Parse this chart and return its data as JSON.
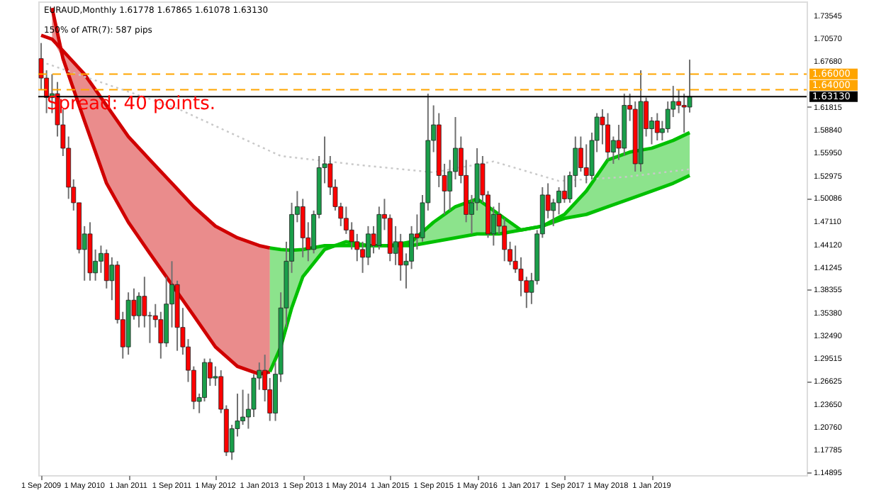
{
  "chart_data": {
    "type": "candlestick",
    "title": "EURAUD,Monthly  1.61778 1.67865 1.61078 1.63130",
    "subtitle": "150% of ATR(7):   587 pips",
    "annotations": [
      "Spread: 40 points."
    ],
    "x": [
      "2009-09",
      "2009-10",
      "2009-11",
      "2009-12",
      "2010-01",
      "2010-02",
      "2010-03",
      "2010-04",
      "2010-05",
      "2010-06",
      "2010-07",
      "2010-08",
      "2010-09",
      "2010-10",
      "2010-11",
      "2010-12",
      "2011-01",
      "2011-02",
      "2011-03",
      "2011-04",
      "2011-05",
      "2011-06",
      "2011-07",
      "2011-08",
      "2011-09",
      "2011-10",
      "2011-11",
      "2011-12",
      "2012-01",
      "2012-02",
      "2012-03",
      "2012-04",
      "2012-05",
      "2012-06",
      "2012-07",
      "2012-08",
      "2012-09",
      "2012-10",
      "2012-11",
      "2012-12",
      "2013-01",
      "2013-02",
      "2013-03",
      "2013-04",
      "2013-05",
      "2013-06",
      "2013-07",
      "2013-08",
      "2013-09",
      "2013-10",
      "2013-11",
      "2013-12",
      "2014-01",
      "2014-02",
      "2014-03",
      "2014-04",
      "2014-05",
      "2014-06",
      "2014-07",
      "2014-08",
      "2014-09",
      "2014-10",
      "2014-11",
      "2014-12",
      "2015-01",
      "2015-02",
      "2015-03",
      "2015-04",
      "2015-05",
      "2015-06",
      "2015-07",
      "2015-08",
      "2015-09",
      "2015-10",
      "2015-11",
      "2015-12",
      "2016-01",
      "2016-02",
      "2016-03",
      "2016-04",
      "2016-05",
      "2016-06",
      "2016-07",
      "2016-08",
      "2016-09",
      "2016-10",
      "2016-11",
      "2016-12",
      "2017-01",
      "2017-02",
      "2017-03",
      "2017-04",
      "2017-05",
      "2017-06",
      "2017-07",
      "2017-08",
      "2017-09",
      "2017-10",
      "2017-11",
      "2017-12",
      "2018-01",
      "2018-02",
      "2018-03",
      "2018-04",
      "2018-05",
      "2018-06",
      "2018-07",
      "2018-08",
      "2018-09",
      "2018-10",
      "2018-11",
      "2018-12",
      "2019-01",
      "2019-02",
      "2019-03",
      "2019-04",
      "2019-05",
      "2019-06",
      "2019-07",
      "2019-08"
    ],
    "ohlc": [
      [
        1.68,
        1.7,
        1.64,
        1.655
      ],
      [
        1.655,
        1.665,
        1.61,
        1.63
      ],
      [
        1.63,
        1.66,
        1.61,
        1.635
      ],
      [
        1.635,
        1.65,
        1.58,
        1.595
      ],
      [
        1.595,
        1.615,
        1.555,
        1.565
      ],
      [
        1.565,
        1.58,
        1.5,
        1.515
      ],
      [
        1.515,
        1.525,
        1.485,
        1.495
      ],
      [
        1.495,
        1.495,
        1.43,
        1.435
      ],
      [
        1.435,
        1.465,
        1.395,
        1.455
      ],
      [
        1.455,
        1.47,
        1.395,
        1.405
      ],
      [
        1.405,
        1.435,
        1.395,
        1.42
      ],
      [
        1.42,
        1.44,
        1.405,
        1.43
      ],
      [
        1.43,
        1.435,
        1.385,
        1.395
      ],
      [
        1.395,
        1.425,
        1.37,
        1.415
      ],
      [
        1.415,
        1.42,
        1.34,
        1.345
      ],
      [
        1.345,
        1.355,
        1.295,
        1.31
      ],
      [
        1.31,
        1.38,
        1.3,
        1.37
      ],
      [
        1.37,
        1.385,
        1.345,
        1.35
      ],
      [
        1.35,
        1.38,
        1.335,
        1.375
      ],
      [
        1.375,
        1.4,
        1.335,
        1.35
      ],
      [
        1.35,
        1.355,
        1.315,
        1.35
      ],
      [
        1.35,
        1.365,
        1.335,
        1.345
      ],
      [
        1.345,
        1.355,
        1.295,
        1.315
      ],
      [
        1.315,
        1.4,
        1.31,
        1.365
      ],
      [
        1.365,
        1.42,
        1.335,
        1.39
      ],
      [
        1.39,
        1.395,
        1.305,
        1.335
      ],
      [
        1.335,
        1.36,
        1.3,
        1.31
      ],
      [
        1.31,
        1.32,
        1.265,
        1.28
      ],
      [
        1.28,
        1.285,
        1.23,
        1.24
      ],
      [
        1.24,
        1.25,
        1.225,
        1.245
      ],
      [
        1.245,
        1.295,
        1.24,
        1.29
      ],
      [
        1.29,
        1.295,
        1.26,
        1.27
      ],
      [
        1.27,
        1.285,
        1.26,
        1.272
      ],
      [
        1.272,
        1.28,
        1.225,
        1.23
      ],
      [
        1.23,
        1.235,
        1.17,
        1.175
      ],
      [
        1.175,
        1.21,
        1.165,
        1.205
      ],
      [
        1.205,
        1.25,
        1.195,
        1.215
      ],
      [
        1.215,
        1.255,
        1.21,
        1.22
      ],
      [
        1.22,
        1.25,
        1.205,
        1.23
      ],
      [
        1.23,
        1.275,
        1.22,
        1.27
      ],
      [
        1.27,
        1.29,
        1.255,
        1.28
      ],
      [
        1.28,
        1.3,
        1.24,
        1.255
      ],
      [
        1.255,
        1.27,
        1.215,
        1.225
      ],
      [
        1.225,
        1.29,
        1.215,
        1.275
      ],
      [
        1.275,
        1.38,
        1.265,
        1.36
      ],
      [
        1.36,
        1.445,
        1.335,
        1.42
      ],
      [
        1.42,
        1.495,
        1.405,
        1.48
      ],
      [
        1.48,
        1.51,
        1.47,
        1.49
      ],
      [
        1.49,
        1.5,
        1.425,
        1.45
      ],
      [
        1.45,
        1.47,
        1.42,
        1.435
      ],
      [
        1.435,
        1.485,
        1.43,
        1.48
      ],
      [
        1.48,
        1.555,
        1.475,
        1.54
      ],
      [
        1.54,
        1.58,
        1.52,
        1.545
      ],
      [
        1.545,
        1.555,
        1.505,
        1.515
      ],
      [
        1.515,
        1.525,
        1.485,
        1.49
      ],
      [
        1.49,
        1.495,
        1.465,
        1.475
      ],
      [
        1.475,
        1.49,
        1.455,
        1.46
      ],
      [
        1.46,
        1.47,
        1.435,
        1.445
      ],
      [
        1.445,
        1.455,
        1.42,
        1.435
      ],
      [
        1.435,
        1.445,
        1.405,
        1.425
      ],
      [
        1.425,
        1.465,
        1.415,
        1.455
      ],
      [
        1.455,
        1.465,
        1.43,
        1.44
      ],
      [
        1.44,
        1.49,
        1.435,
        1.48
      ],
      [
        1.48,
        1.5,
        1.46,
        1.475
      ],
      [
        1.475,
        1.48,
        1.42,
        1.43
      ],
      [
        1.43,
        1.465,
        1.415,
        1.445
      ],
      [
        1.445,
        1.455,
        1.395,
        1.415
      ],
      [
        1.415,
        1.43,
        1.385,
        1.42
      ],
      [
        1.42,
        1.465,
        1.41,
        1.455
      ],
      [
        1.455,
        1.48,
        1.435,
        1.45
      ],
      [
        1.45,
        1.505,
        1.445,
        1.495
      ],
      [
        1.495,
        1.635,
        1.485,
        1.575
      ],
      [
        1.575,
        1.62,
        1.56,
        1.595
      ],
      [
        1.595,
        1.61,
        1.515,
        1.53
      ],
      [
        1.53,
        1.545,
        1.48,
        1.51
      ],
      [
        1.51,
        1.55,
        1.485,
        1.535
      ],
      [
        1.535,
        1.605,
        1.525,
        1.565
      ],
      [
        1.565,
        1.58,
        1.52,
        1.53
      ],
      [
        1.53,
        1.55,
        1.47,
        1.48
      ],
      [
        1.48,
        1.505,
        1.455,
        1.495
      ],
      [
        1.495,
        1.565,
        1.485,
        1.545
      ],
      [
        1.545,
        1.555,
        1.495,
        1.505
      ],
      [
        1.505,
        1.51,
        1.45,
        1.455
      ],
      [
        1.455,
        1.49,
        1.44,
        1.48
      ],
      [
        1.48,
        1.495,
        1.455,
        1.465
      ],
      [
        1.465,
        1.475,
        1.42,
        1.435
      ],
      [
        1.435,
        1.445,
        1.415,
        1.42
      ],
      [
        1.42,
        1.44,
        1.405,
        1.41
      ],
      [
        1.41,
        1.425,
        1.375,
        1.395
      ],
      [
        1.395,
        1.4,
        1.36,
        1.38
      ],
      [
        1.38,
        1.405,
        1.365,
        1.395
      ],
      [
        1.395,
        1.46,
        1.39,
        1.455
      ],
      [
        1.455,
        1.515,
        1.45,
        1.505
      ],
      [
        1.505,
        1.52,
        1.475,
        1.485
      ],
      [
        1.485,
        1.5,
        1.465,
        1.495
      ],
      [
        1.495,
        1.515,
        1.48,
        1.51
      ],
      [
        1.51,
        1.53,
        1.495,
        1.5
      ],
      [
        1.5,
        1.535,
        1.495,
        1.53
      ],
      [
        1.53,
        1.58,
        1.515,
        1.565
      ],
      [
        1.565,
        1.58,
        1.535,
        1.54
      ],
      [
        1.54,
        1.57,
        1.52,
        1.53
      ],
      [
        1.53,
        1.585,
        1.525,
        1.575
      ],
      [
        1.575,
        1.61,
        1.56,
        1.605
      ],
      [
        1.605,
        1.615,
        1.57,
        1.595
      ],
      [
        1.595,
        1.61,
        1.55,
        1.56
      ],
      [
        1.56,
        1.58,
        1.545,
        1.575
      ],
      [
        1.575,
        1.595,
        1.55,
        1.565
      ],
      [
        1.565,
        1.635,
        1.555,
        1.62
      ],
      [
        1.62,
        1.635,
        1.6,
        1.615
      ],
      [
        1.615,
        1.625,
        1.535,
        1.545
      ],
      [
        1.545,
        1.665,
        1.535,
        1.625
      ],
      [
        1.625,
        1.63,
        1.58,
        1.59
      ],
      [
        1.59,
        1.605,
        1.57,
        1.6
      ],
      [
        1.6,
        1.61,
        1.575,
        1.585
      ],
      [
        1.585,
        1.6,
        1.575,
        1.59
      ],
      [
        1.59,
        1.625,
        1.585,
        1.615
      ],
      [
        1.615,
        1.645,
        1.605,
        1.625
      ],
      [
        1.625,
        1.64,
        1.61,
        1.62
      ],
      [
        1.62,
        1.635,
        1.585,
        1.61778
      ],
      [
        1.61778,
        1.67865,
        1.61078,
        1.6313
      ]
    ],
    "series": [
      {
        "type": "line",
        "color": "#d00000",
        "x": [
          "2009-11",
          "2010-01",
          "2010-05",
          "2010-09",
          "2011-01",
          "2011-05",
          "2011-09",
          "2012-01",
          "2012-05",
          "2012-09",
          "2013-01",
          "2013-03"
        ],
        "values": [
          1.745,
          1.68,
          1.6,
          1.52,
          1.47,
          1.43,
          1.39,
          1.35,
          1.31,
          1.285,
          1.275,
          1.278
        ],
        "lower": [
          1.705,
          1.68,
          1.6,
          1.52,
          1.47,
          1.43,
          1.39,
          1.35,
          1.31,
          1.285,
          1.275,
          1.278
        ],
        "upper": [
          1.745,
          1.69,
          1.66,
          1.62,
          1.58,
          1.55,
          1.52,
          1.49,
          1.465,
          1.45,
          1.44,
          1.437
        ]
      },
      {
        "type": "line",
        "color": "#00c000",
        "x": [
          "2013-03",
          "2013-05",
          "2013-07",
          "2013-09",
          "2014-01",
          "2014-05",
          "2014-09",
          "2015-01",
          "2015-05",
          "2015-09",
          "2016-01",
          "2016-05",
          "2016-09",
          "2017-01",
          "2017-05",
          "2017-09",
          "2018-01",
          "2018-05",
          "2018-09",
          "2019-01",
          "2019-05",
          "2019-08"
        ],
        "values": [
          1.278,
          1.31,
          1.36,
          1.4,
          1.435,
          1.445,
          1.44,
          1.44,
          1.445,
          1.47,
          1.49,
          1.5,
          1.48,
          1.46,
          1.465,
          1.48,
          1.51,
          1.55,
          1.56,
          1.565,
          1.575,
          1.585
        ],
        "lower": [
          1.278,
          1.31,
          1.36,
          1.4,
          1.435,
          1.44,
          1.44,
          1.44,
          1.44,
          1.445,
          1.45,
          1.455,
          1.455,
          1.46,
          1.465,
          1.475,
          1.48,
          1.49,
          1.5,
          1.51,
          1.52,
          1.53
        ],
        "upper": [
          1.437,
          1.435,
          1.434,
          1.435,
          1.44,
          1.445,
          1.44,
          1.44,
          1.445,
          1.47,
          1.49,
          1.5,
          1.48,
          1.46,
          1.465,
          1.48,
          1.51,
          1.55,
          1.56,
          1.565,
          1.575,
          1.585
        ]
      },
      {
        "type": "line",
        "color": "#d00000",
        "x": [
          "2009-09",
          "2009-11",
          "2010-01",
          "2010-05",
          "2010-09",
          "2011-01",
          "2011-05",
          "2011-09",
          "2012-01",
          "2012-05",
          "2012-09",
          "2013-01",
          "2013-03"
        ],
        "values": [
          1.71,
          1.705,
          1.69,
          1.66,
          1.62,
          1.58,
          1.55,
          1.52,
          1.49,
          1.465,
          1.45,
          1.44,
          1.437
        ]
      },
      {
        "type": "line",
        "color": "#00c000",
        "x": [
          "2013-03",
          "2013-05",
          "2013-07",
          "2013-09",
          "2014-01",
          "2014-05",
          "2014-09",
          "2015-01",
          "2015-05",
          "2015-09",
          "2016-01",
          "2016-05",
          "2016-09",
          "2017-01",
          "2017-05",
          "2017-09",
          "2018-01",
          "2018-05",
          "2018-09",
          "2019-01",
          "2019-05",
          "2019-08"
        ],
        "values": [
          1.437,
          1.435,
          1.434,
          1.435,
          1.44,
          1.44,
          1.44,
          1.44,
          1.44,
          1.445,
          1.45,
          1.455,
          1.455,
          1.46,
          1.465,
          1.475,
          1.48,
          1.49,
          1.5,
          1.51,
          1.52,
          1.53
        ]
      },
      {
        "type": "line",
        "color": "#c8c8c8",
        "line_style": "dotted",
        "x": [
          "2009-09",
          "2011-10",
          "2013-05",
          "2014-08",
          "2015-09",
          "2016-08",
          "2017-08",
          "2018-08",
          "2019-08"
        ],
        "values": [
          1.676,
          1.616,
          1.555,
          1.543,
          1.534,
          1.548,
          1.523,
          1.528,
          1.538
        ]
      }
    ],
    "ref_lines": [
      {
        "axis": "y",
        "value": 1.66,
        "label": "1.66000",
        "color": "#ffa500",
        "line_style": "dashed"
      },
      {
        "axis": "y",
        "value": 1.64,
        "label": "1.64000",
        "color": "#ffa500",
        "line_style": "dashed"
      },
      {
        "axis": "y",
        "value": 1.6313,
        "label": "1.63130",
        "color": "#000000",
        "line_style": "solid"
      }
    ],
    "xlim": [
      "2009-08-16",
      "2021-05-15"
    ],
    "xticks": [
      {
        "value": "2009-09",
        "label": "1 Sep 2009"
      },
      {
        "value": "2010-05",
        "label": "1 May 2010"
      },
      {
        "value": "2011-01",
        "label": "1 Jan 2011"
      },
      {
        "value": "2011-09",
        "label": "1 Sep 2011"
      },
      {
        "value": "2012-05",
        "label": "1 May 2012"
      },
      {
        "value": "2013-01",
        "label": "1 Jan 2013"
      },
      {
        "value": "2013-09",
        "label": "1 Sep 2013"
      },
      {
        "value": "2014-05",
        "label": "1 May 2014"
      },
      {
        "value": "2015-01",
        "label": "1 Jan 2015"
      },
      {
        "value": "2015-09",
        "label": "1 Sep 2015"
      },
      {
        "value": "2016-05",
        "label": "1 May 2016"
      },
      {
        "value": "2017-01",
        "label": "1 Jan 2017"
      },
      {
        "value": "2017-09",
        "label": "1 Sep 2017"
      },
      {
        "value": "2018-05",
        "label": "1 May 2018"
      },
      {
        "value": "2019-01",
        "label": "1 Jan 2019"
      }
    ],
    "ylim": [
      1.1454,
      1.7534
    ],
    "yticks": [
      1.14895,
      1.17785,
      {
        "value": 1.2076,
        "label": "1.20760"
      },
      {
        "value": 1.2365,
        "label": "1.23650"
      },
      1.26625,
      1.29515,
      {
        "value": 1.3249,
        "label": "1.32490"
      },
      {
        "value": 1.3538,
        "label": "1.35380"
      },
      1.38355,
      1.41245,
      {
        "value": 1.4412,
        "label": "1.44120"
      },
      {
        "value": 1.4711,
        "label": "1.47110"
      },
      1.50086,
      1.52975,
      {
        "value": 1.5595,
        "label": "1.55950"
      },
      {
        "value": 1.5884,
        "label": "1.58840"
      },
      1.61815,
      {
        "value": 1.6768,
        "label": "1.67680"
      },
      {
        "value": 1.7057,
        "label": "1.70570"
      },
      1.73545
    ],
    "grid": false
  }
}
